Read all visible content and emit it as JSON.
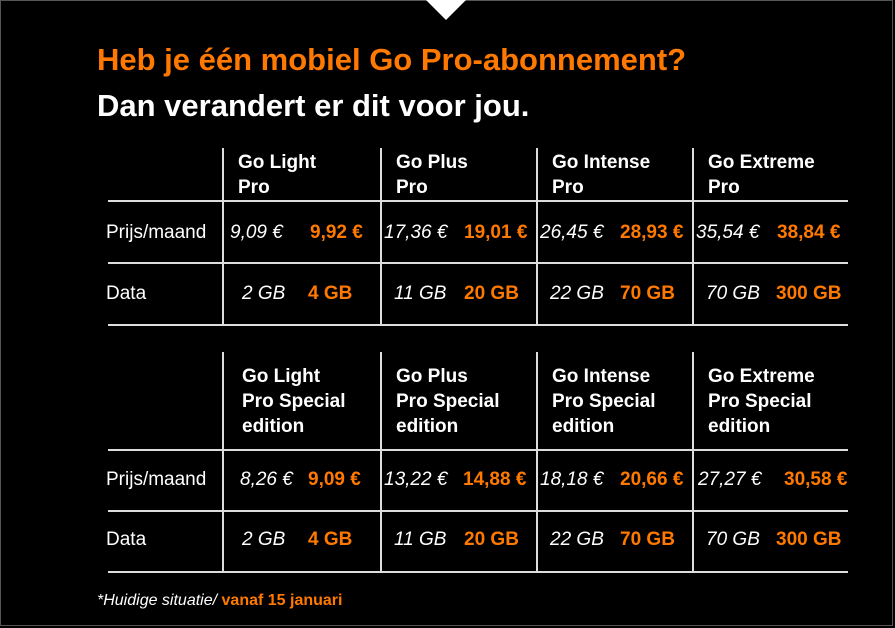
{
  "heading": {
    "line1": "Heb je één mobiel Go Pro-abonnement?",
    "line2": "Dan verandert er dit voor jou."
  },
  "colors": {
    "accent": "#ff7900",
    "background": "#000000",
    "text": "#ffffff"
  },
  "table1": {
    "columns": [
      "Go Light\nPro",
      "Go Plus\nPro",
      "Go Intense\nPro",
      "Go Extreme\nPro"
    ],
    "rows": [
      {
        "label": "Prijs/maand",
        "cells": [
          {
            "old": "9,09 €",
            "new": "9,92 €"
          },
          {
            "old": "17,36 €",
            "new": "19,01 €"
          },
          {
            "old": "26,45 €",
            "new": "28,93 €"
          },
          {
            "old": "35,54 €",
            "new": "38,84 €"
          }
        ]
      },
      {
        "label": "Data",
        "cells": [
          {
            "old": "2 GB",
            "new": "4 GB"
          },
          {
            "old": "11 GB",
            "new": "20 GB"
          },
          {
            "old": "22 GB",
            "new": "70 GB"
          },
          {
            "old": "70 GB",
            "new": "300 GB"
          }
        ]
      }
    ]
  },
  "table2": {
    "columns": [
      "Go Light\nPro Special\nedition",
      "Go Plus\nPro Special\nedition",
      "Go Intense\nPro Special\nedition",
      "Go Extreme\nPro Special\nedition"
    ],
    "rows": [
      {
        "label": "Prijs/maand",
        "cells": [
          {
            "old": "8,26 €",
            "new": "9,09 €"
          },
          {
            "old": "13,22 €",
            "new": "14,88 €"
          },
          {
            "old": "18,18 €",
            "new": "20,66 €"
          },
          {
            "old": "27,27 €",
            "new": "30,58 €"
          }
        ]
      },
      {
        "label": "Data",
        "cells": [
          {
            "old": "2 GB",
            "new": "4 GB"
          },
          {
            "old": "11 GB",
            "new": "20 GB"
          },
          {
            "old": "22 GB",
            "new": "70 GB"
          },
          {
            "old": "70 GB",
            "new": "300 GB"
          }
        ]
      }
    ]
  },
  "footnote": {
    "current": "*Huidige situatie/",
    "new": " vanaf 15 januari"
  }
}
